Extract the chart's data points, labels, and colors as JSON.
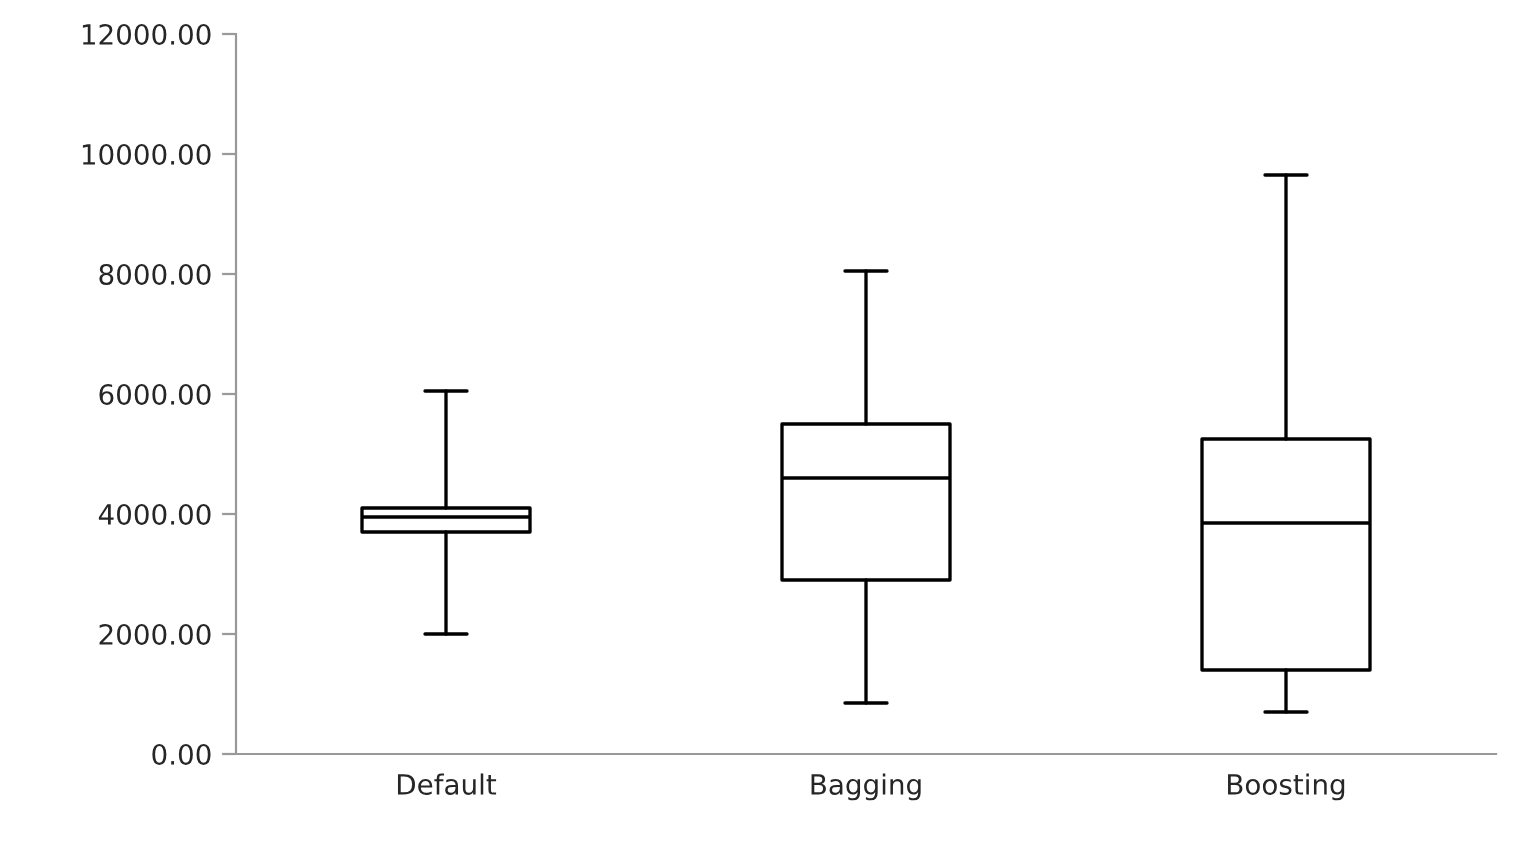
{
  "chart_data": {
    "type": "box",
    "categories": [
      "Default",
      "Bagging",
      "Boosting"
    ],
    "boxes": [
      {
        "low": 2000,
        "q1": 3700,
        "median": 3950,
        "q3": 4100,
        "high": 6050
      },
      {
        "low": 850,
        "q1": 2900,
        "median": 4600,
        "q3": 5500,
        "high": 8050
      },
      {
        "low": 700,
        "q1": 1400,
        "median": 3850,
        "q3": 5250,
        "high": 9650
      }
    ],
    "color": "#000000",
    "ylim": [
      0,
      12000
    ],
    "yticks": [
      {
        "value": 0,
        "label": "0.00"
      },
      {
        "value": 2000,
        "label": "2000.00"
      },
      {
        "value": 4000,
        "label": "4000.00"
      },
      {
        "value": 6000,
        "label": "6000.00"
      },
      {
        "value": 8000,
        "label": "8000.00"
      },
      {
        "value": 10000,
        "label": "10000.00"
      },
      {
        "value": 12000,
        "label": "12000.00"
      }
    ],
    "grid": false
  }
}
